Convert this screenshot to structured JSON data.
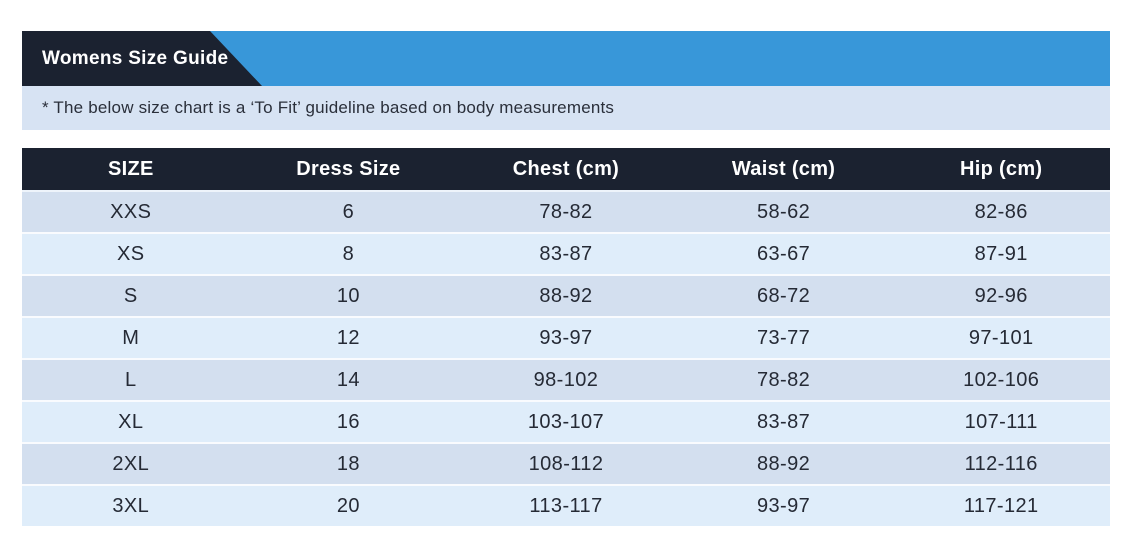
{
  "banner": {
    "title": "Womens Size Guide"
  },
  "note": {
    "text": "* The below size chart is a ‘To Fit’ guideline based on body measurements"
  },
  "colors": {
    "banner_blue": "#3897d9",
    "tab_dark_navy": "#1b2230",
    "note_bar_blue": "#d7e3f3",
    "row_dark": "#d3dfef",
    "row_light": "#dfedfa",
    "header_text": "#ffffff",
    "body_text": "#252a35"
  },
  "chart_data": {
    "type": "table",
    "title": "Womens Size Guide",
    "subtitle": "* The below size chart is a ‘To Fit’ guideline based on body measurements",
    "columns": [
      "SIZE",
      "Dress Size",
      "Chest (cm)",
      "Waist (cm)",
      "Hip (cm)"
    ],
    "rows": [
      [
        "XXS",
        "6",
        "78-82",
        "58-62",
        "82-86"
      ],
      [
        "XS",
        "8",
        "83-87",
        "63-67",
        "87-91"
      ],
      [
        "S",
        "10",
        "88-92",
        "68-72",
        "92-96"
      ],
      [
        "M",
        "12",
        "93-97",
        "73-77",
        "97-101"
      ],
      [
        "L",
        "14",
        "98-102",
        "78-82",
        "102-106"
      ],
      [
        "XL",
        "16",
        "103-107",
        "83-87",
        "107-111"
      ],
      [
        "2XL",
        "18",
        "108-112",
        "88-92",
        "112-116"
      ],
      [
        "3XL",
        "20",
        "113-117",
        "93-97",
        "117-121"
      ]
    ],
    "layout": {
      "columns_equal_width": true,
      "row_striping": "alternating starting dark",
      "header_style": "dark navy bar, white bold text, centered"
    }
  }
}
